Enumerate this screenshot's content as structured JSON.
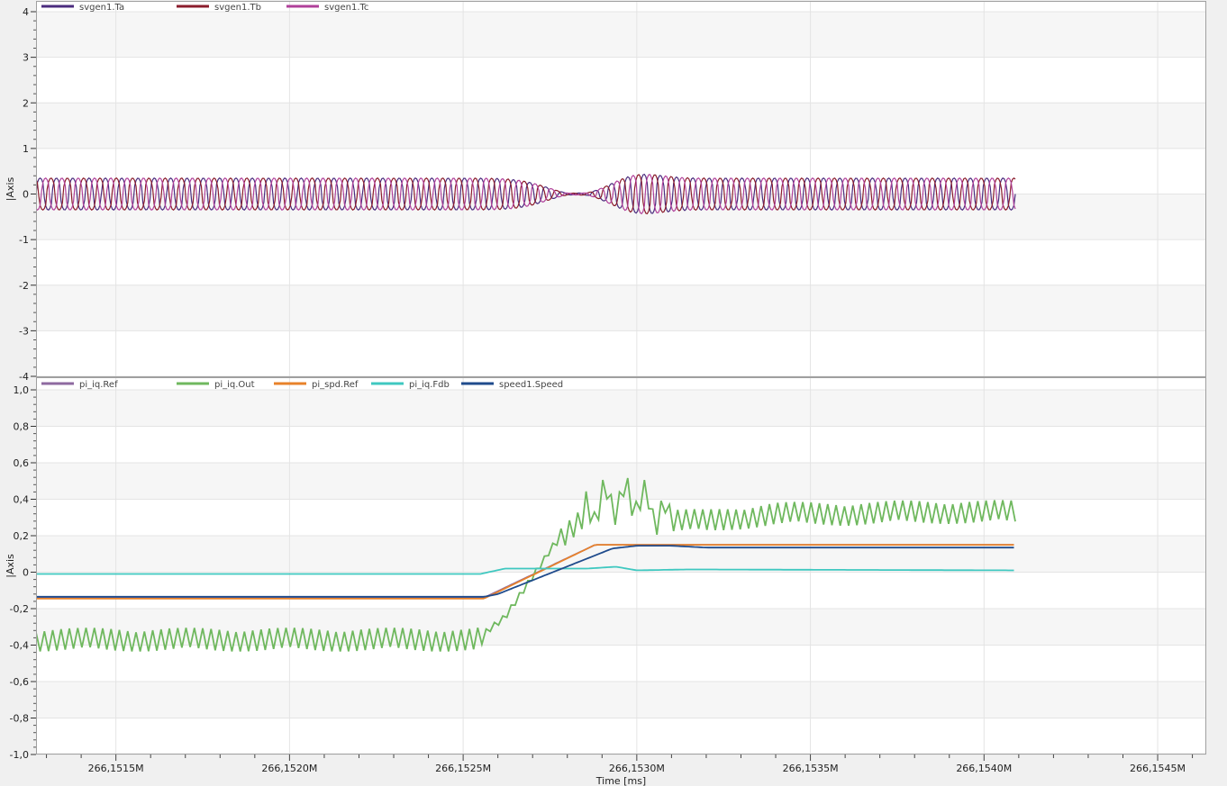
{
  "chart_data": [
    {
      "type": "line",
      "ylabel": "|Axis",
      "ylim": [
        -4,
        4
      ],
      "yticks": [
        -4,
        -3,
        -2,
        -1,
        0,
        1,
        2,
        3,
        4
      ],
      "ytick_labels": [
        "-4",
        "-3",
        "-2",
        "-1",
        "0",
        "1",
        "2",
        "3",
        "4"
      ],
      "legend_position": "top-left",
      "grid": true,
      "series": [
        {
          "name": "svgen1.Ta",
          "color": "#4b2c7e",
          "amplitude": 0.35,
          "phase_deg": 0
        },
        {
          "name": "svgen1.Tb",
          "color": "#8b1c2c",
          "amplitude": 0.35,
          "phase_deg": 120
        },
        {
          "name": "svgen1.Tc",
          "color": "#b0409a",
          "amplitude": 0.35,
          "phase_deg": 240
        }
      ]
    },
    {
      "type": "line",
      "ylabel": "|Axis",
      "xlabel": "Time [ms]",
      "ylim": [
        -1.0,
        1.0
      ],
      "yticks": [
        -1.0,
        -0.8,
        -0.6,
        -0.4,
        -0.2,
        0,
        0.2,
        0.4,
        0.6,
        0.8,
        1.0
      ],
      "ytick_labels": [
        "-1,0",
        "-0,8",
        "-0,6",
        "-0,4",
        "-0,2",
        "0",
        "0,2",
        "0,4",
        "0,6",
        "0,8",
        "1,0"
      ],
      "xlim": [
        266151270,
        266154640
      ],
      "xticks": [
        266151500,
        266152000,
        266152500,
        266153000,
        266153500,
        266154000,
        266154500
      ],
      "xtick_labels": [
        "266,1515M",
        "266,1520M",
        "266,1525M",
        "266,1530M",
        "266,1535M",
        "266,1540M",
        "266,1545M"
      ],
      "legend_position": "top-left",
      "grid": true,
      "series": [
        {
          "name": "pi_iq.Ref",
          "color": "#8e6aa0",
          "x": [
            266151270,
            266152560,
            266152880,
            266154090
          ],
          "y": [
            -0.14,
            -0.14,
            0.15,
            0.15
          ]
        },
        {
          "name": "pi_iq.Out",
          "color": "#6fb85e",
          "x": [
            266151270,
            266152540,
            266152620,
            266152760,
            266152900,
            266153000,
            266153100,
            266153200,
            266153400,
            266153600,
            266153800,
            266154090
          ],
          "y": [
            -0.37,
            -0.37,
            -0.25,
            0.15,
            0.38,
            0.42,
            0.28,
            0.28,
            0.32,
            0.32,
            0.33,
            0.33
          ],
          "ripple": 0.065
        },
        {
          "name": "pi_spd.Ref",
          "color": "#e8822a",
          "x": [
            266151270,
            266152560,
            266152880,
            266154090
          ],
          "y": [
            -0.145,
            -0.145,
            0.15,
            0.15
          ]
        },
        {
          "name": "pi_iq.Fdb",
          "color": "#3fc8c0",
          "x": [
            266151270,
            266152550,
            266152620,
            266152860,
            266152940,
            266153000,
            266153150,
            266154090
          ],
          "y": [
            -0.01,
            -0.01,
            0.02,
            0.02,
            0.03,
            0.01,
            0.015,
            0.01
          ]
        },
        {
          "name": "speed1.Speed",
          "color": "#1f4b8c",
          "x": [
            266151270,
            266152560,
            266152600,
            266152930,
            266153000,
            266153100,
            266153200,
            266154090
          ],
          "y": [
            -0.135,
            -0.135,
            -0.12,
            0.13,
            0.145,
            0.145,
            0.135,
            0.135
          ]
        }
      ]
    }
  ]
}
